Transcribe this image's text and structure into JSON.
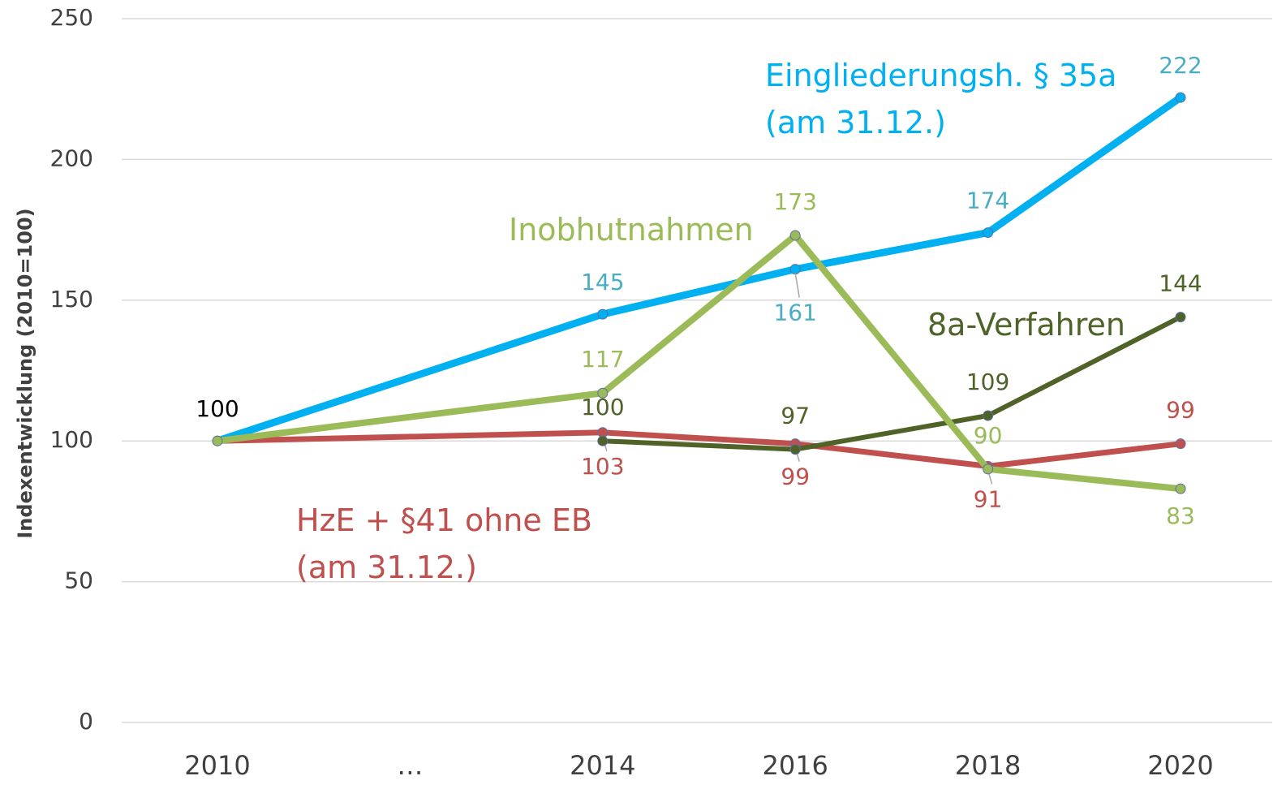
{
  "chart_data": {
    "type": "line",
    "y_label": "Indexentwicklung (2010=100)",
    "x": [
      2010,
      2014,
      2016,
      2018,
      2020
    ],
    "xlim": [
      2009,
      2021
    ],
    "xticks": [
      2010,
      {
        "value": 2012,
        "label": "…"
      },
      2014,
      2016,
      2018,
      2020
    ],
    "ylim": [
      0,
      250
    ],
    "yticks": [
      0,
      50,
      100,
      150,
      200,
      250
    ],
    "grid": true,
    "series": [
      {
        "name": "Eingliederungsh. § 35a\n(am 31.12.)",
        "color": "#00b0f0",
        "values": [
          100,
          145,
          161,
          174,
          222
        ]
      },
      {
        "name": "HzE + §41 ohne EB\n(am 31.12.)",
        "color": "#c0504d",
        "values": [
          100,
          103,
          99,
          91,
          99
        ]
      },
      {
        "name": "8a-Verfahren",
        "color": "#4f6228",
        "values": [
          null,
          100,
          97,
          109,
          144
        ]
      },
      {
        "name": "Inobhutnahmen",
        "color": "#9bbb59",
        "values": [
          100,
          117,
          173,
          90,
          83
        ]
      }
    ]
  }
}
